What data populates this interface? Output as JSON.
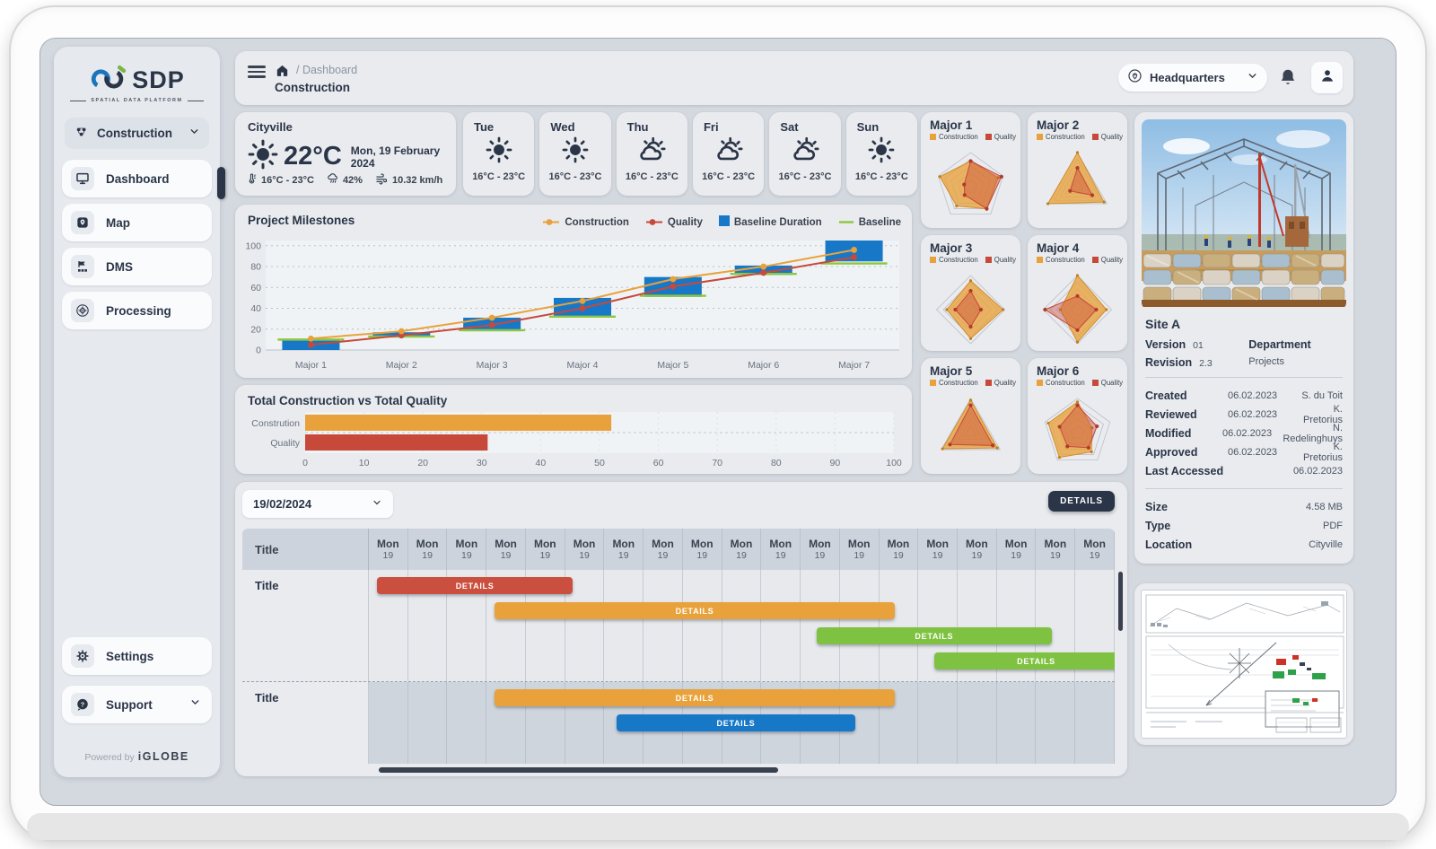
{
  "brand": {
    "name": "SDP",
    "tagline": "SPATIAL DATA PLATFORM",
    "powered_by": "Powered by",
    "powered_brand": "iGLOBE"
  },
  "sidebar": {
    "selector": {
      "label": "Construction"
    },
    "nav": [
      {
        "label": "Dashboard"
      },
      {
        "label": "Map"
      },
      {
        "label": "DMS"
      },
      {
        "label": "Processing"
      }
    ],
    "footer": [
      {
        "label": "Settings"
      },
      {
        "label": "Support"
      }
    ]
  },
  "header": {
    "breadcrumb": "/ Dashboard",
    "title": "Construction",
    "location": "Headquarters"
  },
  "weather": {
    "current": {
      "city": "Cityville",
      "temp": "22°C",
      "date": "Mon, 19 February 2024",
      "range": "16°C - 23°C",
      "humidity": "42%",
      "wind": "10.32 km/h"
    },
    "days": [
      {
        "label": "Tue",
        "icon": "sun-icon",
        "range": "16°C - 23°C"
      },
      {
        "label": "Wed",
        "icon": "sun-icon",
        "range": "16°C - 23°C"
      },
      {
        "label": "Thu",
        "icon": "sun-cloud-icon",
        "range": "16°C - 23°C"
      },
      {
        "label": "Fri",
        "icon": "sun-cloud-icon",
        "range": "16°C - 23°C"
      },
      {
        "label": "Sat",
        "icon": "sun-cloud-icon",
        "range": "16°C - 23°C"
      },
      {
        "label": "Sun",
        "icon": "sun-icon",
        "range": "16°C - 23°C"
      }
    ]
  },
  "gantt_panel": {
    "date_filter": "19/02/2024",
    "details_button": "DETAILS"
  },
  "details_panel": {
    "site": "Site A",
    "version_label": "Version",
    "version": "01",
    "revision_label": "Revision",
    "revision": "2.3",
    "department_label": "Department",
    "department": "Projects",
    "history": [
      {
        "label": "Created",
        "date": "06.02.2023",
        "name": "S. du Toit"
      },
      {
        "label": "Reviewed",
        "date": "06.02.2023",
        "name": "K. Pretorius"
      },
      {
        "label": "Modified",
        "date": "06.02.2023",
        "name": "N. Redelinghuys"
      },
      {
        "label": "Approved",
        "date": "06.02.2023",
        "name": "K. Pretorius"
      },
      {
        "label": "Last Accessed",
        "date": "",
        "name": "06.02.2023"
      }
    ],
    "meta": [
      {
        "label": "Size",
        "value": "4.58 MB"
      },
      {
        "label": "Type",
        "value": "PDF"
      },
      {
        "label": "Location",
        "value": "Cityville"
      }
    ]
  },
  "chart_data": [
    {
      "id": "milestones",
      "type": "combo-bar-line",
      "title": "Project Milestones",
      "categories": [
        "Major 1",
        "Major 2",
        "Major 3",
        "Major 4",
        "Major 5",
        "Major 6",
        "Major 7"
      ],
      "floating_bars": {
        "name": "Baseline Duration",
        "color": "#1878C8",
        "ranges": [
          [
            0,
            10
          ],
          [
            12,
            17
          ],
          [
            18,
            31
          ],
          [
            31,
            50
          ],
          [
            51,
            70
          ],
          [
            72,
            81
          ],
          [
            85,
            105
          ]
        ]
      },
      "lines": [
        {
          "name": "Construction",
          "color": "#E9A23B",
          "values": [
            11,
            18,
            31,
            47,
            68,
            80,
            96
          ]
        },
        {
          "name": "Quality",
          "color": "#C7493A",
          "values": [
            5,
            14,
            24,
            40,
            61,
            74,
            89
          ]
        }
      ],
      "baseline_ticks": {
        "name": "Baseline",
        "color": "#8DC63F",
        "values": [
          10,
          13,
          19,
          32,
          52,
          73,
          83
        ]
      },
      "ylim": [
        0,
        105
      ],
      "yticks": [
        0,
        20,
        40,
        60,
        80,
        100
      ],
      "grid": "dashed-horizontal",
      "legend_position": "top-right",
      "legend": [
        {
          "label": "Construction",
          "marker": "dotline",
          "color": "#E9A23B"
        },
        {
          "label": "Quality",
          "marker": "dotline",
          "color": "#C7493A"
        },
        {
          "label": "Baseline Duration",
          "marker": "square",
          "color": "#1878C8"
        },
        {
          "label": "Baseline",
          "marker": "line",
          "color": "#8DC63F"
        }
      ]
    },
    {
      "id": "totals",
      "type": "bar",
      "orientation": "horizontal",
      "title": "Total Construction vs Total Quality",
      "categories": [
        "Constrution",
        "Quality"
      ],
      "values": [
        52,
        31
      ],
      "colors": [
        "#E9A23B",
        "#C7493A"
      ],
      "xlim": [
        0,
        100
      ],
      "xticks": [
        0,
        10,
        20,
        30,
        40,
        50,
        60,
        70,
        80,
        90,
        100
      ]
    },
    {
      "id": "radars",
      "type": "radar-grid",
      "legend": [
        "Construction",
        "Quality"
      ],
      "colors": {
        "construction": "#E9A23B",
        "quality": "#C7493A"
      },
      "scale": [
        0,
        100
      ],
      "cards": [
        {
          "title": "Major 1",
          "axes": 5,
          "construction": [
            75,
            85,
            80,
            70,
            95
          ],
          "quality": [
            75,
            95,
            80,
            30,
            20
          ]
        },
        {
          "title": "Major 2",
          "axes": 3,
          "construction": [
            100,
            90,
            100
          ],
          "quality": [
            55,
            50,
            25
          ]
        },
        {
          "title": "Major 3",
          "axes": 4,
          "construction": [
            85,
            95,
            85,
            70
          ],
          "quality": [
            55,
            30,
            50,
            45
          ]
        },
        {
          "title": "Major 4",
          "axes": 4,
          "construction": [
            100,
            85,
            95,
            50
          ],
          "quality": [
            40,
            55,
            60,
            95
          ]
        },
        {
          "title": "Major 5",
          "axes": 3,
          "construction": [
            95,
            90,
            95
          ],
          "quality": [
            80,
            75,
            70
          ]
        },
        {
          "title": "Major 6",
          "axes": 5,
          "construction": [
            90,
            45,
            70,
            90,
            90
          ],
          "quality": [
            80,
            60,
            55,
            50,
            55
          ]
        }
      ]
    },
    {
      "id": "gantt",
      "type": "gantt",
      "title_column": "Title",
      "columns": [
        {
          "day": "Mon",
          "date": "19"
        },
        {
          "day": "Mon",
          "date": "19"
        },
        {
          "day": "Mon",
          "date": "19"
        },
        {
          "day": "Mon",
          "date": "19"
        },
        {
          "day": "Mon",
          "date": "19"
        },
        {
          "day": "Mon",
          "date": "19"
        },
        {
          "day": "Mon",
          "date": "19"
        },
        {
          "day": "Mon",
          "date": "19"
        },
        {
          "day": "Mon",
          "date": "19"
        },
        {
          "day": "Mon",
          "date": "19"
        },
        {
          "day": "Mon",
          "date": "19"
        },
        {
          "day": "Mon",
          "date": "19"
        },
        {
          "day": "Mon",
          "date": "19"
        },
        {
          "day": "Mon",
          "date": "19"
        },
        {
          "day": "Mon",
          "date": "19"
        },
        {
          "day": "Mon",
          "date": "19"
        },
        {
          "day": "Mon",
          "date": "19"
        },
        {
          "day": "Mon",
          "date": "19"
        },
        {
          "day": "Mon",
          "date": "19"
        }
      ],
      "groups": [
        {
          "title": "Title",
          "shaded": false,
          "bars": [
            {
              "label": "DETAILS",
              "color": "#CB4F3E",
              "start": 0.2,
              "end": 5.2
            },
            {
              "label": "DETAILS",
              "color": "#E9A23B",
              "start": 3.2,
              "end": 13.4
            },
            {
              "label": "DETAILS",
              "color": "#7FC241",
              "start": 11.4,
              "end": 17.4
            },
            {
              "label": "DETAILS",
              "color": "#7FC241",
              "start": 14.4,
              "end": 19.6
            }
          ]
        },
        {
          "title": "Title",
          "shaded": true,
          "bars": [
            {
              "label": "DETAILS",
              "color": "#E9A23B",
              "start": 3.2,
              "end": 13.4
            },
            {
              "label": "DETAILS",
              "color": "#1878C8",
              "start": 6.3,
              "end": 12.4
            }
          ]
        }
      ]
    }
  ]
}
